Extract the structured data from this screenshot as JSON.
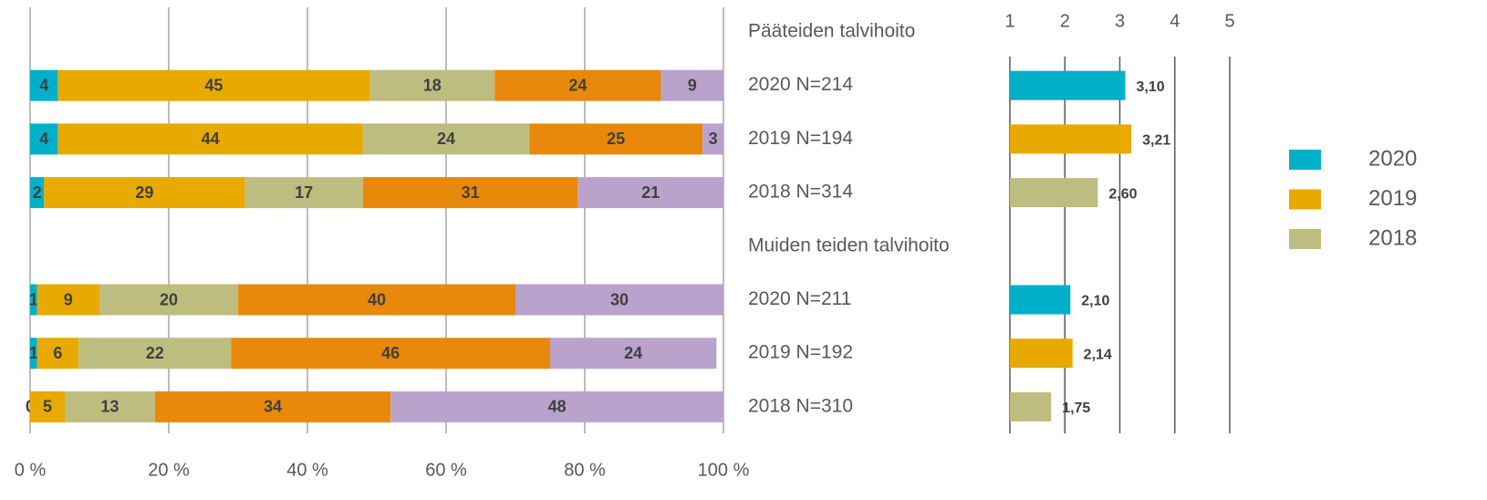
{
  "chart_data": [
    {
      "type": "stacked_bar",
      "categories": [
        "Pääteiden talvihoito",
        "2020 N=214",
        "2019 N=194",
        "2018 N=314",
        "Muiden teiden talvihoito",
        "2020 N=211",
        "2019 N=192",
        "2018 N=310"
      ],
      "series": [
        {
          "color": "#00b0c8",
          "values": [
            null,
            4,
            4,
            2,
            null,
            1,
            1,
            0
          ]
        },
        {
          "color": "#e8a900",
          "values": [
            null,
            45,
            44,
            29,
            null,
            9,
            6,
            5
          ]
        },
        {
          "color": "#bdbd80",
          "values": [
            null,
            18,
            24,
            17,
            null,
            20,
            22,
            13
          ]
        },
        {
          "color": "#e8890b",
          "values": [
            null,
            24,
            25,
            31,
            null,
            40,
            46,
            34
          ]
        },
        {
          "color": "#b9a2cc",
          "values": [
            null,
            9,
            3,
            21,
            null,
            30,
            24,
            48
          ]
        }
      ],
      "xlim": [
        0,
        100
      ],
      "xticks": [
        {
          "value": 0,
          "label": "0 %"
        },
        {
          "value": 20,
          "label": "20 %"
        },
        {
          "value": 40,
          "label": "40 %"
        },
        {
          "value": 60,
          "label": "60 %"
        },
        {
          "value": 80,
          "label": "80 %"
        },
        {
          "value": 100,
          "label": "100 %"
        }
      ],
      "grid": true
    },
    {
      "type": "bar",
      "series": [
        {
          "name": "2020",
          "color": "#00b0c8",
          "values": [
            null,
            3.1,
            null,
            null,
            null,
            2.1,
            null,
            null
          ],
          "value_labels": [
            null,
            "3,10",
            null,
            null,
            null,
            "2,10",
            null,
            null
          ]
        },
        {
          "name": "2019",
          "color": "#e8a900",
          "values": [
            null,
            null,
            3.21,
            null,
            null,
            null,
            2.14,
            null
          ],
          "value_labels": [
            null,
            null,
            "3,21",
            null,
            null,
            null,
            "2,14",
            null
          ]
        },
        {
          "name": "2018",
          "color": "#bdbd80",
          "values": [
            null,
            null,
            null,
            2.6,
            null,
            null,
            null,
            1.75
          ],
          "value_labels": [
            null,
            null,
            null,
            "2,60",
            null,
            null,
            null,
            "1,75"
          ]
        }
      ],
      "xlim": [
        1,
        5
      ],
      "xticks": [
        1,
        2,
        3,
        4,
        5
      ],
      "grid": true,
      "legend": "right"
    }
  ]
}
